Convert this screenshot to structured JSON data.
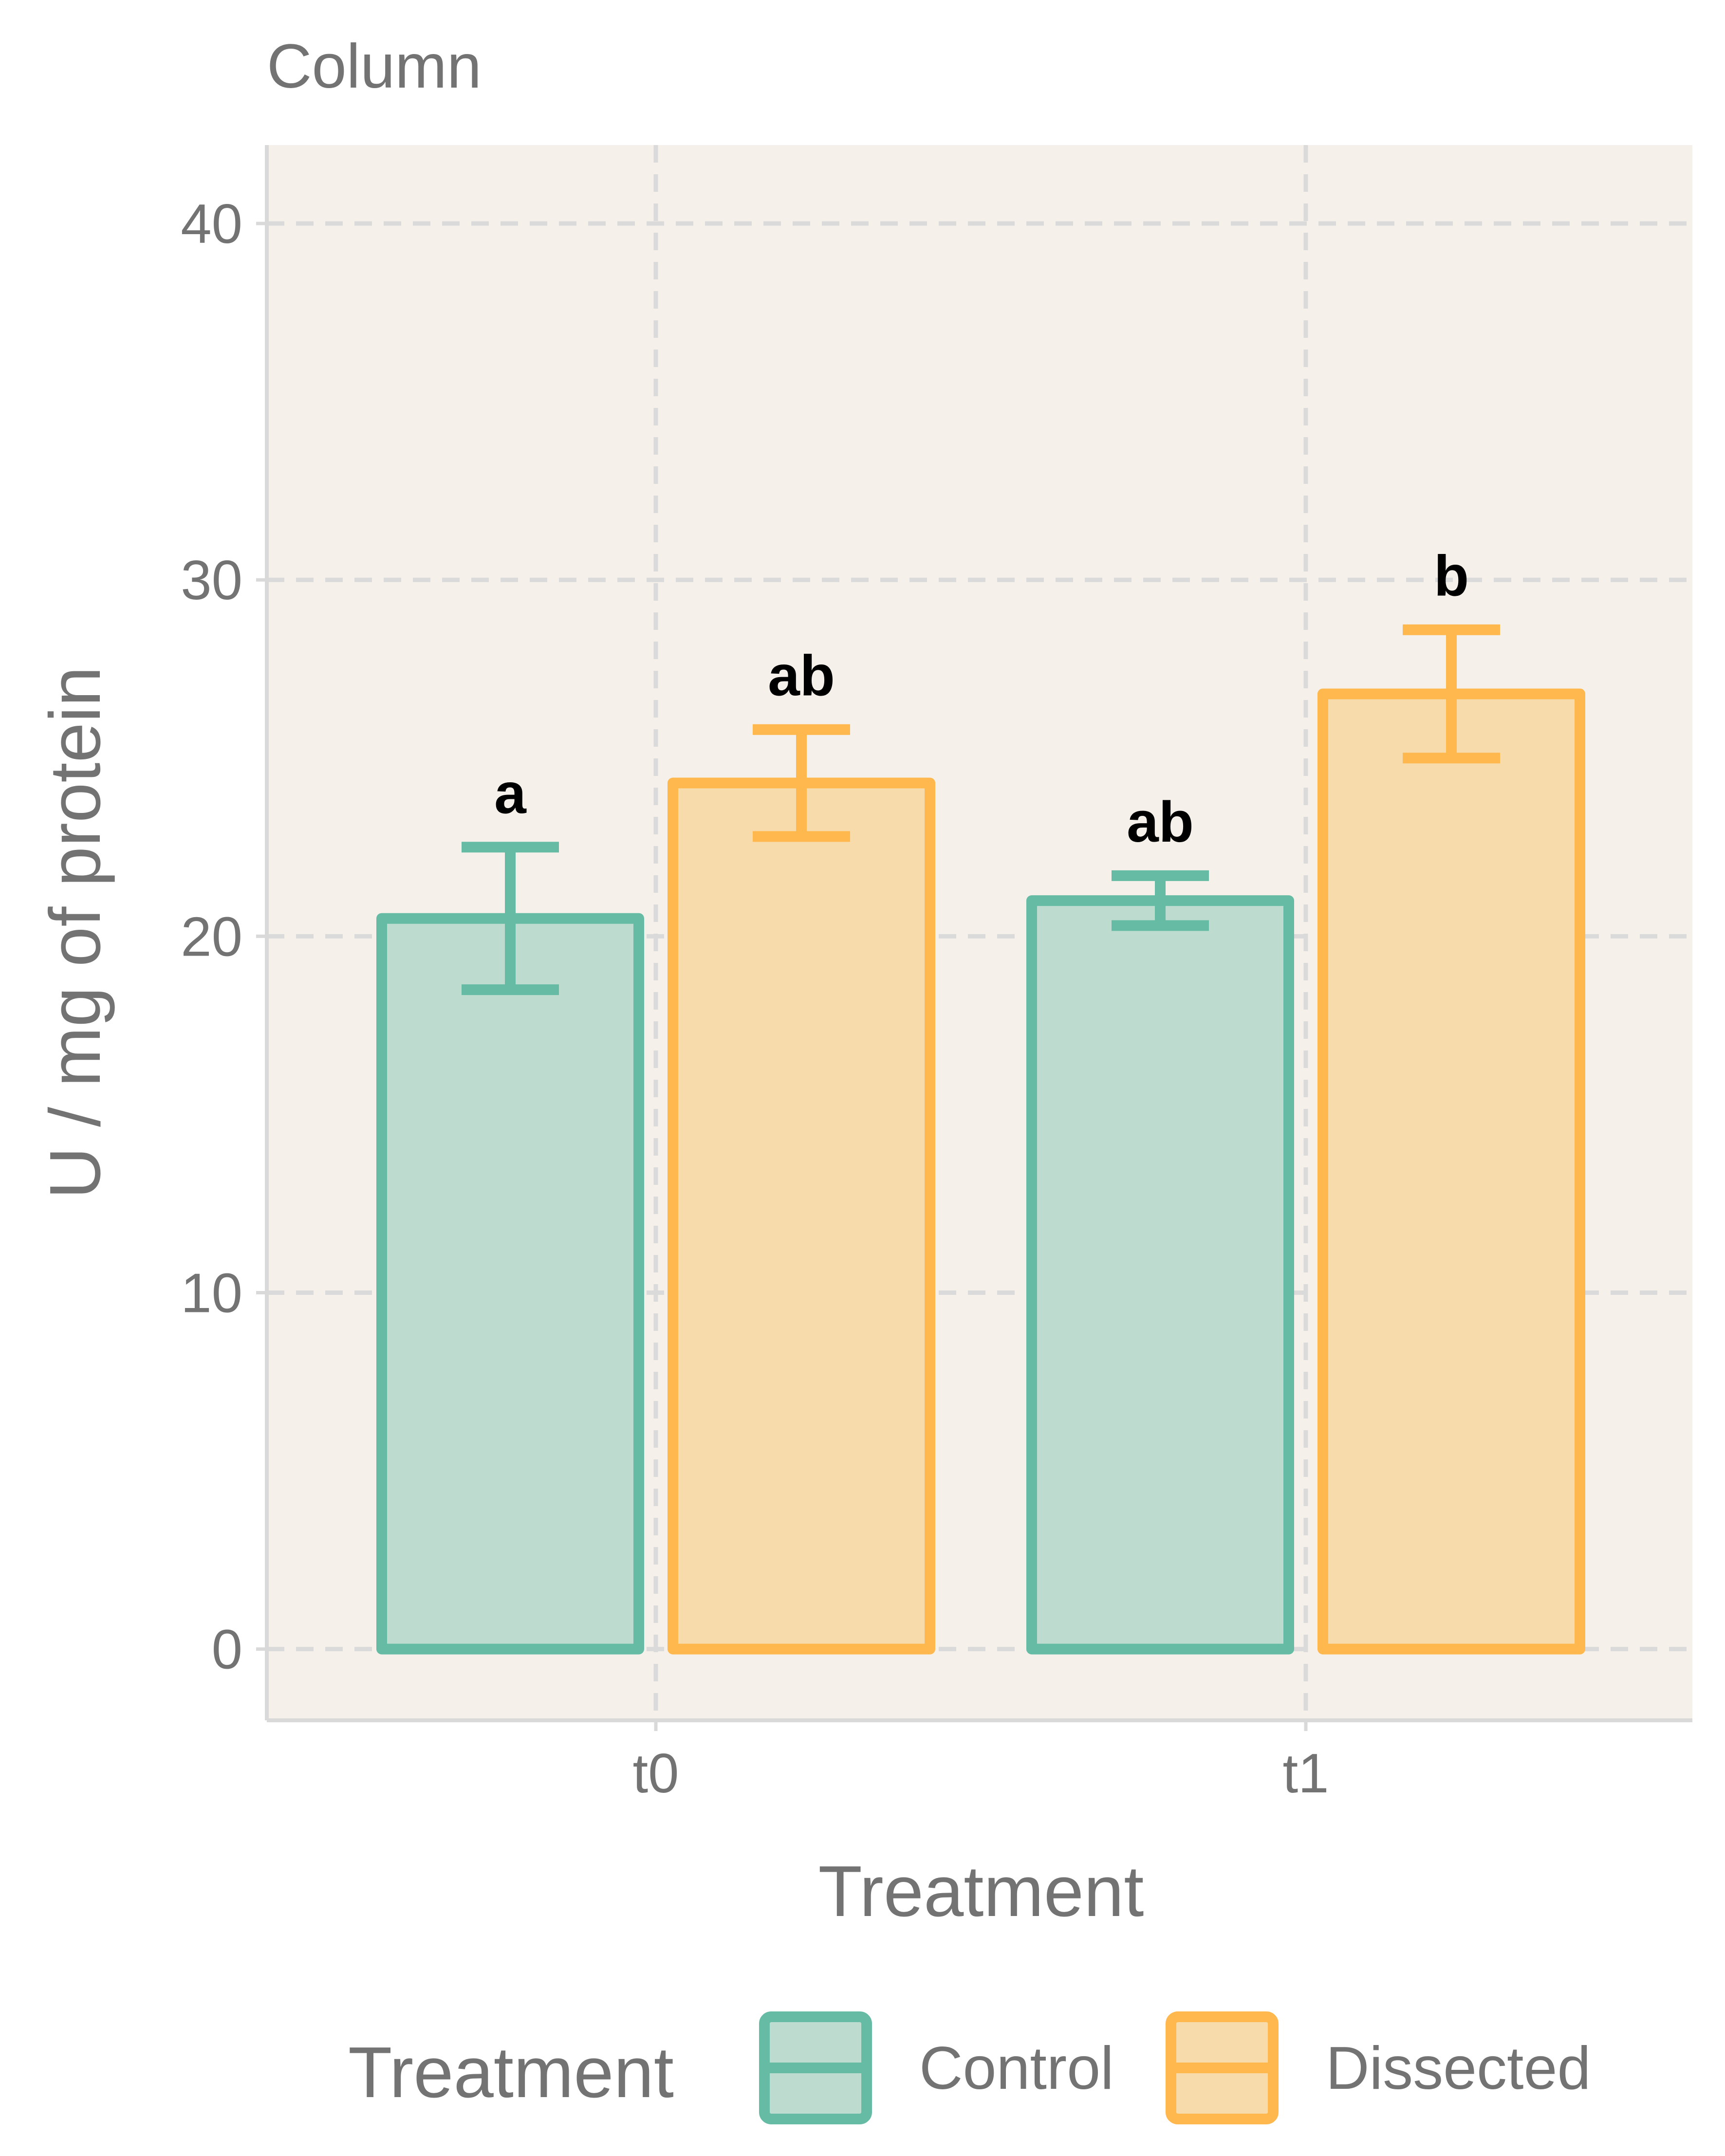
{
  "chart_data": {
    "type": "bar",
    "title": "Column",
    "xlabel": "Treatment",
    "ylabel": "U / mg  of protein",
    "categories": [
      "t0",
      "t1"
    ],
    "ylim": [
      -2,
      42.2
    ],
    "yticks": [
      0,
      10,
      20,
      30,
      40
    ],
    "grid": true,
    "grid_style": "dashed",
    "legend_title": "Treatment",
    "legend_position": "bottom",
    "series": [
      {
        "name": "Control",
        "values": [
          20.5,
          21.0
        ],
        "error_low": [
          18.5,
          20.3
        ],
        "error_high": [
          22.5,
          21.7
        ],
        "sig_labels": [
          "a",
          "ab"
        ],
        "color": "#66bba4",
        "fill": "#bddccf"
      },
      {
        "name": "Dissected",
        "values": [
          24.3,
          26.8
        ],
        "error_low": [
          22.8,
          25.0
        ],
        "error_high": [
          25.8,
          28.6
        ],
        "sig_labels": [
          "ab",
          "b"
        ],
        "color": "#ffb84d",
        "fill": "#f8dbab"
      }
    ],
    "colors": {
      "panel_background": "#f5f0ea",
      "grid": "#dadada",
      "axis_line": "#d9d9d9",
      "text": "#737373"
    }
  }
}
